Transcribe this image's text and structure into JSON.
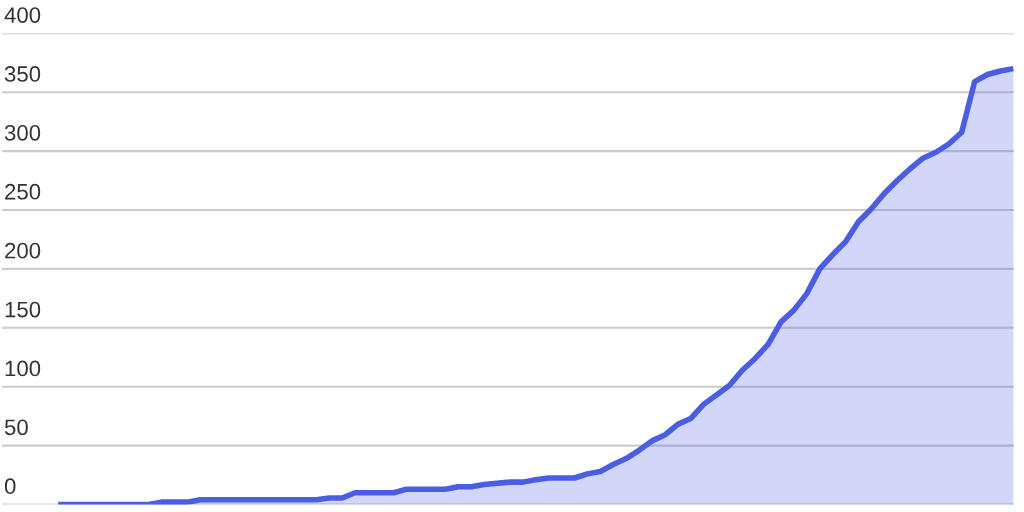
{
  "chart_data": {
    "type": "area",
    "categories": [
      null,
      null,
      null,
      null,
      null,
      null,
      null,
      null,
      null,
      null,
      null,
      null,
      null,
      null,
      null,
      null,
      null,
      null,
      null,
      null,
      null,
      null,
      null,
      null,
      null,
      null,
      null,
      null,
      null,
      null,
      null,
      null,
      null,
      null,
      null,
      null,
      null,
      null,
      null,
      null,
      null,
      null,
      null,
      null,
      null,
      null,
      null,
      null,
      null,
      null,
      null,
      null,
      null,
      null,
      null,
      null,
      null,
      null,
      null,
      null,
      null,
      null,
      null,
      null,
      null,
      null,
      null,
      null,
      null,
      null,
      null,
      null,
      null,
      null,
      null
    ],
    "series": [
      {
        "color": "#4a5de3",
        "values": [
          0,
          0,
          0,
          0,
          0,
          0,
          0,
          0,
          2,
          2,
          2,
          4,
          4,
          4,
          4,
          4,
          4,
          4,
          4,
          4,
          4,
          5.5,
          5.5,
          10,
          10,
          10,
          10,
          13,
          13,
          13,
          13,
          15,
          15,
          17,
          18,
          19,
          19,
          21,
          22.5,
          22.5,
          22.5,
          26,
          28,
          34,
          39,
          46,
          54,
          59,
          68,
          73,
          85,
          93,
          101,
          114,
          124,
          136,
          155,
          165,
          179,
          200,
          212,
          223,
          240,
          251,
          264,
          275,
          285,
          294,
          299,
          306,
          316,
          359,
          365,
          368,
          370
        ]
      }
    ],
    "ylim": [
      0,
      400
    ],
    "yticks": [
      0,
      50,
      100,
      150,
      200,
      250,
      300,
      350,
      400
    ],
    "grid": "y"
  }
}
